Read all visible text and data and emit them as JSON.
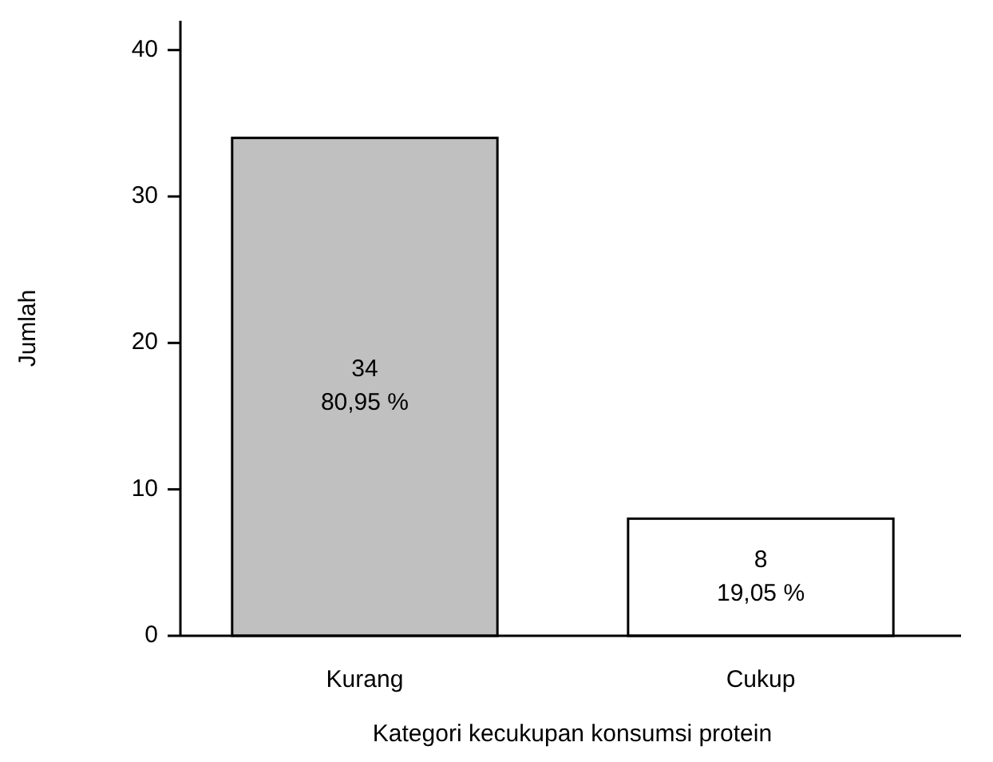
{
  "chart_data": {
    "type": "bar",
    "xlabel": "Kategori kecukupan konsumsi protein",
    "ylabel": "Jumlah",
    "categories": [
      "Kurang",
      "Cukup"
    ],
    "values": [
      34,
      8
    ],
    "colors": [
      "#c0c0c0",
      "#ffffff"
    ],
    "value_labels": [
      "34\n80,95 %",
      "8\n19,05 %"
    ],
    "ylim": [
      0,
      42
    ],
    "yticks": [
      0,
      10,
      20,
      30,
      40
    ],
    "grid": false
  }
}
